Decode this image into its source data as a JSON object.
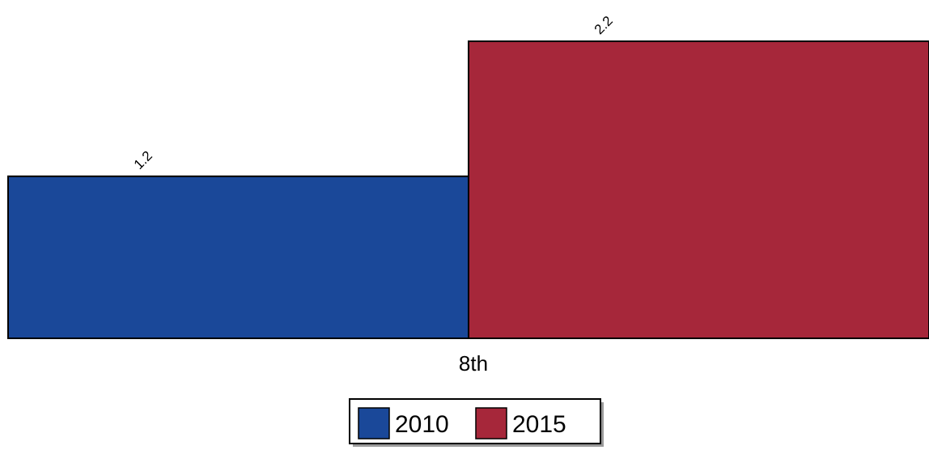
{
  "chart_data": {
    "type": "bar",
    "categories": [
      "8th"
    ],
    "series": [
      {
        "name": "2010",
        "values": [
          1.2
        ],
        "color": "#1a4899"
      },
      {
        "name": "2015",
        "values": [
          2.2
        ],
        "color": "#a6273a"
      }
    ],
    "data_labels": [
      [
        "1.2"
      ],
      [
        "2.2"
      ]
    ],
    "title": "",
    "xlabel": "",
    "ylabel": "",
    "ylim": [
      0,
      2.2
    ],
    "grid": false,
    "legend_placement": "bottom-center",
    "legend": [
      {
        "label": "2010",
        "color": "#1a4899"
      },
      {
        "label": "2015",
        "color": "#a6273a"
      }
    ]
  }
}
